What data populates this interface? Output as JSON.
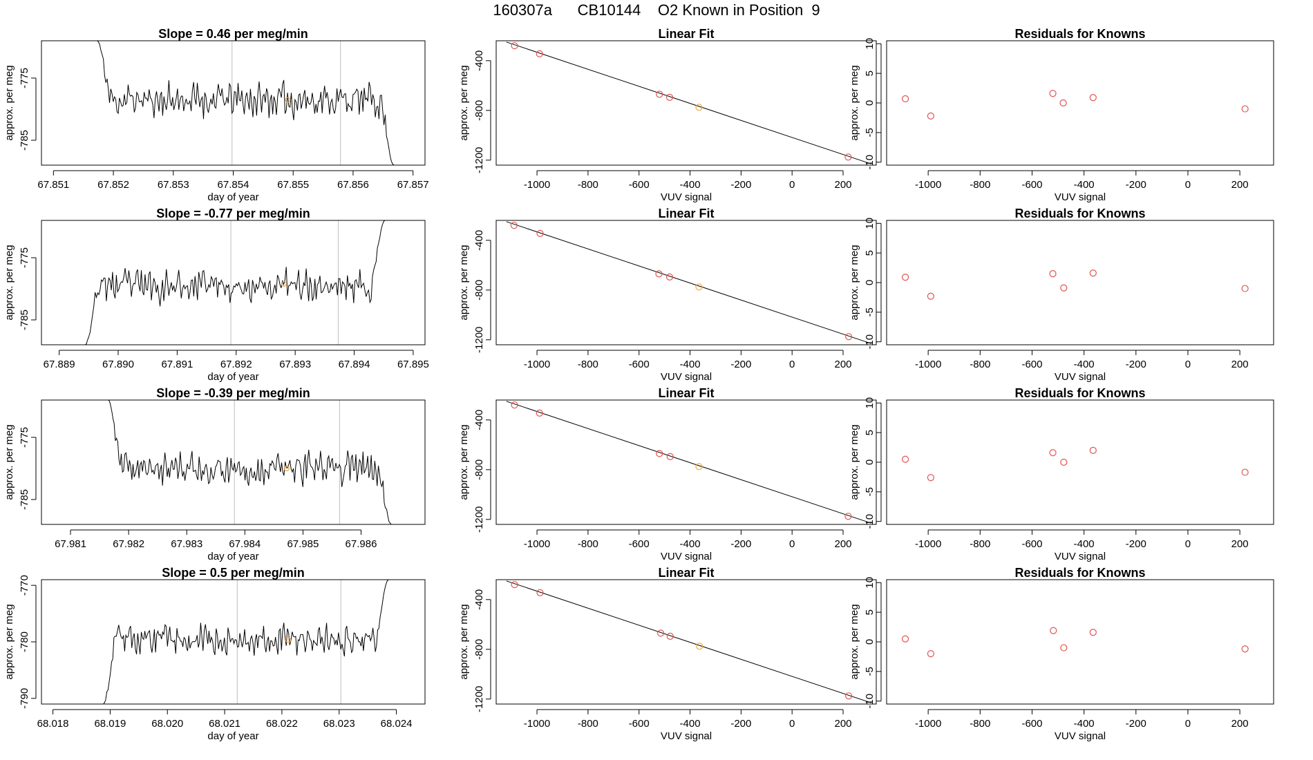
{
  "figure": {
    "title": "160307a      CB10144    O2 Known in Position  9"
  },
  "colors": {
    "line": "#000000",
    "axis": "#000000",
    "vline": "#bebebe",
    "known_point": "#e0544f",
    "sample_point": "#f2a93b"
  },
  "chart_data": [
    {
      "type": "line",
      "title": "Slope =  0.46  per meg/min",
      "xlabel": "day of year",
      "ylabel": "approx. per meg",
      "xlim": [
        67.8508,
        67.8572
      ],
      "ylim": [
        -789,
        -769
      ],
      "xticks": [
        67.851,
        67.852,
        67.853,
        67.854,
        67.855,
        67.856,
        67.857
      ],
      "xtick_labels": [
        "67.851",
        "67.852",
        "67.853",
        "67.854",
        "67.855",
        "67.856",
        "67.857"
      ],
      "yticks": [
        -775,
        -785
      ],
      "ytick_labels": [
        "-775",
        "-785"
      ],
      "vlines": [
        67.85398,
        67.85579
      ],
      "x_start": 67.85173,
      "x_end": 67.85668,
      "start_level": -769,
      "end_level": -789,
      "mean": -778.5,
      "amplitude": 3.2,
      "seed": 11,
      "marker": {
        "x": 67.85491,
        "y": -778.5
      }
    },
    {
      "type": "line",
      "title": "Slope =  -0.77  per meg/min",
      "xlabel": "day of year",
      "ylabel": "approx. per meg",
      "xlim": [
        67.8887,
        67.8952
      ],
      "ylim": [
        -789,
        -769
      ],
      "xticks": [
        67.889,
        67.89,
        67.891,
        67.892,
        67.893,
        67.894,
        67.895
      ],
      "xtick_labels": [
        "67.889",
        "67.890",
        "67.891",
        "67.892",
        "67.893",
        "67.894",
        "67.895"
      ],
      "yticks": [
        -775,
        -785
      ],
      "ytick_labels": [
        "-775",
        "-785"
      ],
      "vlines": [
        67.89191,
        67.89373
      ],
      "x_start": 67.88944,
      "x_end": 67.89452,
      "start_level": -789,
      "end_level": -769,
      "mean": -779.5,
      "amplitude": 3.0,
      "seed": 23,
      "marker": {
        "x": 67.89281,
        "y": -779.2
      }
    },
    {
      "type": "line",
      "title": "Slope =  -0.39  per meg/min",
      "xlabel": "day of year",
      "ylabel": "approx. per meg",
      "xlim": [
        67.9805,
        67.9871
      ],
      "ylim": [
        -789,
        -769
      ],
      "xticks": [
        67.981,
        67.982,
        67.983,
        67.984,
        67.985,
        67.986
      ],
      "xtick_labels": [
        "67.981",
        "67.982",
        "67.983",
        "67.984",
        "67.985",
        "67.986"
      ],
      "yticks": [
        -775,
        -785
      ],
      "ytick_labels": [
        "-775",
        "-785"
      ],
      "vlines": [
        67.98382,
        67.98563
      ],
      "x_start": 67.98165,
      "x_end": 67.98652,
      "start_level": -769,
      "end_level": -789,
      "mean": -780.0,
      "amplitude": 3.0,
      "seed": 37,
      "marker": {
        "x": 67.98472,
        "y": -780.0
      }
    },
    {
      "type": "line",
      "title": "Slope =  0.5  per meg/min",
      "xlabel": "day of year",
      "ylabel": "approx. per meg",
      "xlim": [
        68.0178,
        68.0245
      ],
      "ylim": [
        -791,
        -769
      ],
      "xticks": [
        68.018,
        68.019,
        68.02,
        68.021,
        68.022,
        68.023,
        68.024
      ],
      "xtick_labels": [
        "68.018",
        "68.019",
        "68.020",
        "68.021",
        "68.022",
        "68.023",
        "68.024"
      ],
      "yticks": [
        -770,
        -780,
        -790
      ],
      "ytick_labels": [
        "-770",
        "-780",
        "-790"
      ],
      "vlines": [
        68.02122,
        68.02303
      ],
      "x_start": 68.01888,
      "x_end": 68.02386,
      "start_level": -791,
      "end_level": -769,
      "mean": -779.5,
      "amplitude": 3.0,
      "seed": 53,
      "marker": {
        "x": 68.02211,
        "y": -779.7
      }
    },
    {
      "type": "scatter",
      "title": "Linear Fit",
      "xlabel": "VUV signal",
      "ylabel": "approx. per meg",
      "xlim": [
        -1160,
        330
      ],
      "ylim": [
        -1240,
        -240
      ],
      "xticks": [
        -1000,
        -800,
        -600,
        -400,
        -200,
        0,
        200
      ],
      "xtick_labels": [
        "-1000",
        "-800",
        "-600",
        "-400",
        "-200",
        "0",
        "200"
      ],
      "yticks": [
        -400,
        -800,
        -1200
      ],
      "ytick_labels": [
        "-400",
        "-800",
        "-1200"
      ],
      "fit_line": {
        "x": [
          -1120,
          310
        ],
        "y": [
          -250,
          -1230
        ]
      },
      "points": [
        {
          "x": -1088,
          "y": -280,
          "kind": "known"
        },
        {
          "x": -990,
          "y": -345,
          "kind": "known"
        },
        {
          "x": -520,
          "y": -670,
          "kind": "known"
        },
        {
          "x": -480,
          "y": -695,
          "kind": "known"
        },
        {
          "x": -365,
          "y": -775,
          "kind": "sample"
        },
        {
          "x": 220,
          "y": -1175,
          "kind": "known"
        }
      ]
    },
    {
      "type": "scatter",
      "title": "Linear Fit",
      "xlabel": "VUV signal",
      "ylabel": "approx. per meg",
      "xlim": [
        -1160,
        330
      ],
      "ylim": [
        -1240,
        -240
      ],
      "xticks": [
        -1000,
        -800,
        -600,
        -400,
        -200,
        0,
        200
      ],
      "xtick_labels": [
        "-1000",
        "-800",
        "-600",
        "-400",
        "-200",
        "0",
        "200"
      ],
      "yticks": [
        -400,
        -800,
        -1200
      ],
      "ytick_labels": [
        "-400",
        "-800",
        "-1200"
      ],
      "fit_line": {
        "x": [
          -1120,
          310
        ],
        "y": [
          -250,
          -1230
        ]
      },
      "points": [
        {
          "x": -1090,
          "y": -280,
          "kind": "known"
        },
        {
          "x": -988,
          "y": -345,
          "kind": "known"
        },
        {
          "x": -522,
          "y": -670,
          "kind": "known"
        },
        {
          "x": -480,
          "y": -695,
          "kind": "known"
        },
        {
          "x": -365,
          "y": -775,
          "kind": "sample"
        },
        {
          "x": 222,
          "y": -1175,
          "kind": "known"
        }
      ]
    },
    {
      "type": "scatter",
      "title": "Linear Fit",
      "xlabel": "VUV signal",
      "ylabel": "approx. per meg",
      "xlim": [
        -1160,
        330
      ],
      "ylim": [
        -1240,
        -240
      ],
      "xticks": [
        -1000,
        -800,
        -600,
        -400,
        -200,
        0,
        200
      ],
      "xtick_labels": [
        "-1000",
        "-800",
        "-600",
        "-400",
        "-200",
        "0",
        "200"
      ],
      "yticks": [
        -400,
        -800,
        -1200
      ],
      "ytick_labels": [
        "-400",
        "-800",
        "-1200"
      ],
      "fit_line": {
        "x": [
          -1120,
          310
        ],
        "y": [
          -250,
          -1230
        ]
      },
      "points": [
        {
          "x": -1088,
          "y": -280,
          "kind": "known"
        },
        {
          "x": -990,
          "y": -345,
          "kind": "known"
        },
        {
          "x": -520,
          "y": -670,
          "kind": "known"
        },
        {
          "x": -478,
          "y": -695,
          "kind": "known"
        },
        {
          "x": -365,
          "y": -775,
          "kind": "sample"
        },
        {
          "x": 220,
          "y": -1175,
          "kind": "known"
        }
      ]
    },
    {
      "type": "scatter",
      "title": "Linear Fit",
      "xlabel": "VUV signal",
      "ylabel": "approx. per meg",
      "xlim": [
        -1160,
        330
      ],
      "ylim": [
        -1240,
        -240
      ],
      "xticks": [
        -1000,
        -800,
        -600,
        -400,
        -200,
        0,
        200
      ],
      "xtick_labels": [
        "-1000",
        "-800",
        "-600",
        "-400",
        "-200",
        "0",
        "200"
      ],
      "yticks": [
        -400,
        -800,
        -1200
      ],
      "ytick_labels": [
        "-400",
        "-800",
        "-1200"
      ],
      "fit_line": {
        "x": [
          -1120,
          310
        ],
        "y": [
          -250,
          -1230
        ]
      },
      "points": [
        {
          "x": -1088,
          "y": -280,
          "kind": "known"
        },
        {
          "x": -988,
          "y": -345,
          "kind": "known"
        },
        {
          "x": -515,
          "y": -670,
          "kind": "known"
        },
        {
          "x": -478,
          "y": -695,
          "kind": "known"
        },
        {
          "x": -363,
          "y": -775,
          "kind": "sample"
        },
        {
          "x": 222,
          "y": -1175,
          "kind": "known"
        }
      ]
    },
    {
      "type": "scatter",
      "title": "Residuals for Knowns",
      "xlabel": "VUV signal",
      "ylabel": "approx. per meg",
      "xlim": [
        -1160,
        330
      ],
      "ylim": [
        -10.5,
        10.5
      ],
      "xticks": [
        -1000,
        -800,
        -600,
        -400,
        -200,
        0,
        200
      ],
      "xtick_labels": [
        "-1000",
        "-800",
        "-600",
        "-400",
        "-200",
        "0",
        "200"
      ],
      "yticks": [
        10,
        5,
        0,
        -5,
        -10
      ],
      "ytick_labels": [
        "10",
        "5",
        "0",
        "-5",
        "-10"
      ],
      "points": [
        {
          "x": -1088,
          "y": 0.7,
          "kind": "known"
        },
        {
          "x": -990,
          "y": -2.2,
          "kind": "known"
        },
        {
          "x": -520,
          "y": 1.6,
          "kind": "known"
        },
        {
          "x": -480,
          "y": 0.0,
          "kind": "known"
        },
        {
          "x": -365,
          "y": 0.9,
          "kind": "known"
        },
        {
          "x": 220,
          "y": -1.0,
          "kind": "known"
        }
      ]
    },
    {
      "type": "scatter",
      "title": "Residuals for Knowns",
      "xlabel": "VUV signal",
      "ylabel": "approx. per meg",
      "xlim": [
        -1160,
        330
      ],
      "ylim": [
        -10.5,
        10.5
      ],
      "xticks": [
        -1000,
        -800,
        -600,
        -400,
        -200,
        0,
        200
      ],
      "xtick_labels": [
        "-1000",
        "-800",
        "-600",
        "-400",
        "-200",
        "0",
        "200"
      ],
      "yticks": [
        10,
        5,
        0,
        -5,
        -10
      ],
      "ytick_labels": [
        "10",
        "5",
        "0",
        "-5",
        "-10"
      ],
      "points": [
        {
          "x": -1088,
          "y": 0.9,
          "kind": "known"
        },
        {
          "x": -990,
          "y": -2.3,
          "kind": "known"
        },
        {
          "x": -520,
          "y": 1.5,
          "kind": "known"
        },
        {
          "x": -478,
          "y": -0.9,
          "kind": "known"
        },
        {
          "x": -365,
          "y": 1.6,
          "kind": "known"
        },
        {
          "x": 220,
          "y": -1.0,
          "kind": "known"
        }
      ]
    },
    {
      "type": "scatter",
      "title": "Residuals for Knowns",
      "xlabel": "VUV signal",
      "ylabel": "approx. per meg",
      "xlim": [
        -1160,
        330
      ],
      "ylim": [
        -10.5,
        10.5
      ],
      "xticks": [
        -1000,
        -800,
        -600,
        -400,
        -200,
        0,
        200
      ],
      "xtick_labels": [
        "-1000",
        "-800",
        "-600",
        "-400",
        "-200",
        "0",
        "200"
      ],
      "yticks": [
        10,
        5,
        0,
        -5,
        -10
      ],
      "ytick_labels": [
        "10",
        "5",
        "0",
        "-5",
        "-10"
      ],
      "points": [
        {
          "x": -1088,
          "y": 0.5,
          "kind": "known"
        },
        {
          "x": -990,
          "y": -2.6,
          "kind": "known"
        },
        {
          "x": -520,
          "y": 1.6,
          "kind": "known"
        },
        {
          "x": -478,
          "y": 0.0,
          "kind": "known"
        },
        {
          "x": -365,
          "y": 2.0,
          "kind": "known"
        },
        {
          "x": 220,
          "y": -1.7,
          "kind": "known"
        }
      ]
    },
    {
      "type": "scatter",
      "title": "Residuals for Knowns",
      "xlabel": "VUV signal",
      "ylabel": "approx. per meg",
      "xlim": [
        -1160,
        330
      ],
      "ylim": [
        -10.5,
        10.5
      ],
      "xticks": [
        -1000,
        -800,
        -600,
        -400,
        -200,
        0,
        200
      ],
      "xtick_labels": [
        "-1000",
        "-800",
        "-600",
        "-400",
        "-200",
        "0",
        "200"
      ],
      "yticks": [
        10,
        5,
        0,
        -5,
        -10
      ],
      "ytick_labels": [
        "10",
        "5",
        "0",
        "-5",
        "-10"
      ],
      "points": [
        {
          "x": -1088,
          "y": 0.5,
          "kind": "known"
        },
        {
          "x": -990,
          "y": -2.0,
          "kind": "known"
        },
        {
          "x": -518,
          "y": 1.9,
          "kind": "known"
        },
        {
          "x": -478,
          "y": -1.0,
          "kind": "known"
        },
        {
          "x": -365,
          "y": 1.6,
          "kind": "known"
        },
        {
          "x": 220,
          "y": -1.2,
          "kind": "known"
        }
      ]
    }
  ]
}
